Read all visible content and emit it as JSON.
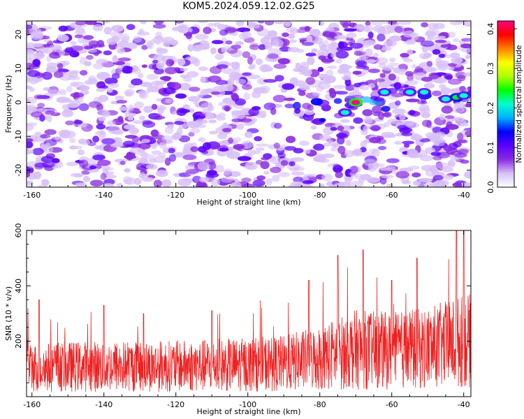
{
  "title": "KOM5.2024.059.12.02.G25",
  "chart_data": [
    {
      "type": "heatmap",
      "title": "KOM5.2024.059.12.02.G25",
      "xlabel": "Height of straight line (km)",
      "ylabel": "Frequency (Hz)",
      "xlim": [
        -161.5,
        -38
      ],
      "ylim": [
        -25,
        24
      ],
      "xticks": [
        -160,
        -140,
        -120,
        -100,
        -80,
        -60,
        -40
      ],
      "yticks": [
        20,
        10,
        0,
        -10,
        -20
      ],
      "grid": false,
      "colorbar": {
        "label": "Normalized spectral amplitude",
        "range": [
          0,
          0.42
        ],
        "ticks": [
          0.0,
          0.1,
          0.2,
          0.3,
          0.4
        ],
        "colormap": [
          "#ffffff",
          "#d8c0f8",
          "#8a2be2",
          "#5a00ff",
          "#0000ff",
          "#00b0ff",
          "#00ffd0",
          "#00ff00",
          "#b0ff00",
          "#ffff00",
          "#ff8000",
          "#ff0000",
          "#ff0080"
        ]
      },
      "features": [
        {
          "x": -70,
          "y": 0,
          "value": 0.42
        },
        {
          "x": -73,
          "y": -3,
          "value": 0.2
        },
        {
          "x": -62,
          "y": 3,
          "value": 0.2
        },
        {
          "x": -55,
          "y": 3,
          "value": 0.2
        },
        {
          "x": -51,
          "y": 3,
          "value": 0.2
        },
        {
          "x": -45,
          "y": 1,
          "value": 0.22
        },
        {
          "x": -42,
          "y": 1.5,
          "value": 0.25
        },
        {
          "x": -40,
          "y": 2,
          "value": 0.22
        }
      ]
    },
    {
      "type": "line",
      "xlabel": "Height of straight line (km)",
      "ylabel": "SNR (10 * v/v)",
      "xlim": [
        -161.5,
        -38
      ],
      "ylim": [
        0,
        600
      ],
      "xticks": [
        -160,
        -140,
        -120,
        -100,
        -80,
        -60,
        -40
      ],
      "yticks": [
        200,
        400,
        600
      ],
      "color": "#ee2222",
      "grid": false,
      "baseline_mean": [
        {
          "x": -161,
          "y": 105
        },
        {
          "x": -140,
          "y": 110
        },
        {
          "x": -120,
          "y": 110
        },
        {
          "x": -100,
          "y": 115
        },
        {
          "x": -90,
          "y": 120
        },
        {
          "x": -80,
          "y": 140
        },
        {
          "x": -70,
          "y": 170
        },
        {
          "x": -60,
          "y": 165
        },
        {
          "x": -50,
          "y": 175
        },
        {
          "x": -40,
          "y": 200
        }
      ],
      "peaks": [
        {
          "x": -158,
          "y": 350
        },
        {
          "x": -140,
          "y": 330
        },
        {
          "x": -129,
          "y": 300
        },
        {
          "x": -110,
          "y": 310
        },
        {
          "x": -83,
          "y": 420
        },
        {
          "x": -75,
          "y": 510
        },
        {
          "x": -68,
          "y": 530
        },
        {
          "x": -60,
          "y": 420
        },
        {
          "x": -53,
          "y": 500
        },
        {
          "x": -42,
          "y": 600
        },
        {
          "x": -40,
          "y": 600
        }
      ]
    }
  ]
}
